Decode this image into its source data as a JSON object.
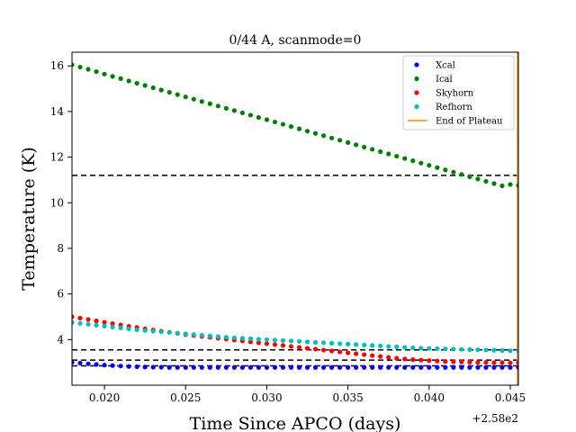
{
  "chart_data": {
    "type": "scatter",
    "title": "0/44 A, scanmode=0",
    "xlabel": "Time Since APCO (days)",
    "ylabel": "Temperature (K)",
    "x_offset_label": "+2.58e2",
    "xlim": [
      0.018,
      0.0455
    ],
    "ylim": [
      2.0,
      16.6
    ],
    "xticks": [
      0.02,
      0.025,
      0.03,
      0.035,
      0.04,
      0.045
    ],
    "xtick_labels": [
      "0.020",
      "0.025",
      "0.030",
      "0.035",
      "0.040",
      "0.045"
    ],
    "yticks": [
      4,
      6,
      8,
      10,
      12,
      14,
      16
    ],
    "ytick_labels": [
      "4",
      "6",
      "8",
      "10",
      "12",
      "14",
      "16"
    ],
    "grid": false,
    "legend_position": "upper right",
    "x": [
      0.018,
      0.0185,
      0.019,
      0.0195,
      0.02,
      0.0205,
      0.021,
      0.0215,
      0.022,
      0.0225,
      0.023,
      0.0235,
      0.024,
      0.0245,
      0.025,
      0.0255,
      0.026,
      0.0265,
      0.027,
      0.0275,
      0.028,
      0.0285,
      0.029,
      0.0295,
      0.03,
      0.0305,
      0.031,
      0.0315,
      0.032,
      0.0325,
      0.033,
      0.0335,
      0.034,
      0.0345,
      0.035,
      0.0355,
      0.036,
      0.0365,
      0.037,
      0.0375,
      0.038,
      0.0385,
      0.039,
      0.0395,
      0.04,
      0.0405,
      0.041,
      0.0415,
      0.042,
      0.0425,
      0.043,
      0.0435,
      0.044,
      0.0445,
      0.045,
      0.0455
    ],
    "series": [
      {
        "name": "Xcal",
        "color": "#0000ff",
        "marker": "point",
        "values": [
          3.0,
          2.97,
          2.94,
          2.91,
          2.88,
          2.86,
          2.84,
          2.82,
          2.81,
          2.8,
          2.79,
          2.79,
          2.78,
          2.78,
          2.78,
          2.78,
          2.78,
          2.78,
          2.78,
          2.78,
          2.78,
          2.78,
          2.78,
          2.78,
          2.78,
          2.78,
          2.78,
          2.78,
          2.78,
          2.78,
          2.78,
          2.78,
          2.78,
          2.78,
          2.78,
          2.78,
          2.78,
          2.78,
          2.78,
          2.78,
          2.78,
          2.78,
          2.78,
          2.78,
          2.78,
          2.78,
          2.78,
          2.78,
          2.78,
          2.78,
          2.78,
          2.78,
          2.78,
          2.78,
          2.78,
          2.78
        ]
      },
      {
        "name": "Ical",
        "color": "#008000",
        "marker": "point",
        "values": [
          16.05,
          15.95,
          15.85,
          15.75,
          15.64,
          15.54,
          15.44,
          15.34,
          15.24,
          15.14,
          15.04,
          14.94,
          14.84,
          14.74,
          14.64,
          14.54,
          14.44,
          14.34,
          14.24,
          14.14,
          14.04,
          13.94,
          13.84,
          13.74,
          13.64,
          13.54,
          13.44,
          13.34,
          13.24,
          13.14,
          13.04,
          12.94,
          12.84,
          12.74,
          12.64,
          12.54,
          12.44,
          12.34,
          12.24,
          12.14,
          12.04,
          11.94,
          11.84,
          11.74,
          11.64,
          11.54,
          11.44,
          11.34,
          11.24,
          11.14,
          11.04,
          10.94,
          10.84,
          10.74,
          10.8,
          10.76
        ]
      },
      {
        "name": "Skyhorn",
        "color": "#ff0000",
        "marker": "point",
        "values": [
          5.0,
          4.94,
          4.88,
          4.82,
          4.76,
          4.7,
          4.64,
          4.58,
          4.53,
          4.47,
          4.42,
          4.37,
          4.32,
          4.27,
          4.22,
          4.18,
          4.14,
          4.1,
          4.06,
          4.02,
          3.98,
          3.94,
          3.9,
          3.86,
          3.82,
          3.78,
          3.74,
          3.7,
          3.66,
          3.62,
          3.58,
          3.54,
          3.5,
          3.46,
          3.42,
          3.38,
          3.34,
          3.3,
          3.26,
          3.22,
          3.18,
          3.15,
          3.12,
          3.1,
          3.08,
          3.06,
          3.04,
          3.03,
          3.02,
          3.01,
          3.0,
          3.0,
          2.99,
          2.99,
          2.98,
          2.98
        ]
      },
      {
        "name": "Refhorn",
        "color": "#00bfbf",
        "marker": "point",
        "values": [
          4.75,
          4.71,
          4.67,
          4.63,
          4.59,
          4.55,
          4.51,
          4.47,
          4.43,
          4.4,
          4.37,
          4.34,
          4.31,
          4.28,
          4.25,
          4.22,
          4.19,
          4.16,
          4.13,
          4.1,
          4.08,
          4.06,
          4.04,
          4.02,
          4.0,
          3.98,
          3.96,
          3.94,
          3.92,
          3.9,
          3.88,
          3.86,
          3.84,
          3.82,
          3.8,
          3.78,
          3.76,
          3.74,
          3.72,
          3.7,
          3.68,
          3.66,
          3.64,
          3.62,
          3.61,
          3.6,
          3.59,
          3.58,
          3.57,
          3.56,
          3.55,
          3.54,
          3.53,
          3.52,
          3.51,
          3.5
        ]
      }
    ],
    "hlines": [
      {
        "y": 11.2,
        "style": "dashed",
        "color": "#000000"
      },
      {
        "y": 3.55,
        "style": "dashed",
        "color": "#000000"
      },
      {
        "y": 3.1,
        "style": "dashed",
        "color": "#000000"
      },
      {
        "y": 2.85,
        "style": "dashed",
        "color": "#000000"
      }
    ],
    "vline": {
      "name": "End of Plateau",
      "x": 0.0455,
      "color": "#ff8c00"
    }
  }
}
